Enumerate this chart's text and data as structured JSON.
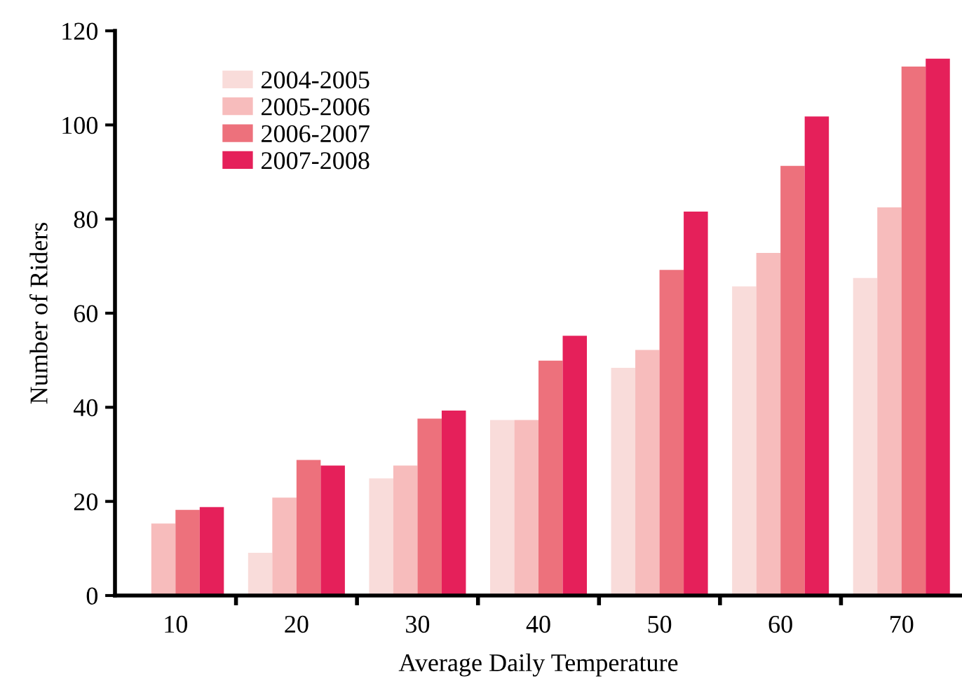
{
  "chart_data": {
    "type": "bar",
    "xlabel": "Average Daily Temperature",
    "ylabel": "Number of Riders",
    "categories": [
      "10",
      "20",
      "30",
      "40",
      "50",
      "60",
      "70"
    ],
    "series": [
      {
        "name": "2004-2005",
        "color": "#f9dcda",
        "values": [
          null,
          9.1,
          24.9,
          37.3,
          48.4,
          65.7,
          67.5
        ]
      },
      {
        "name": "2005-2006",
        "color": "#f7bcbc",
        "values": [
          15.3,
          20.8,
          27.6,
          37.3,
          52.2,
          72.8,
          82.5
        ]
      },
      {
        "name": "2006-2007",
        "color": "#ed717c",
        "values": [
          18.2,
          28.8,
          37.6,
          49.9,
          69.2,
          91.3,
          112.4
        ]
      },
      {
        "name": "2007-2008",
        "color": "#e5205a",
        "values": [
          18.8,
          27.6,
          39.3,
          55.2,
          81.6,
          101.8,
          114.1
        ]
      }
    ],
    "ylim": [
      0,
      120
    ],
    "yticks": [
      0,
      20,
      40,
      60,
      80,
      100,
      120
    ],
    "legend": "top left",
    "grid": false
  }
}
